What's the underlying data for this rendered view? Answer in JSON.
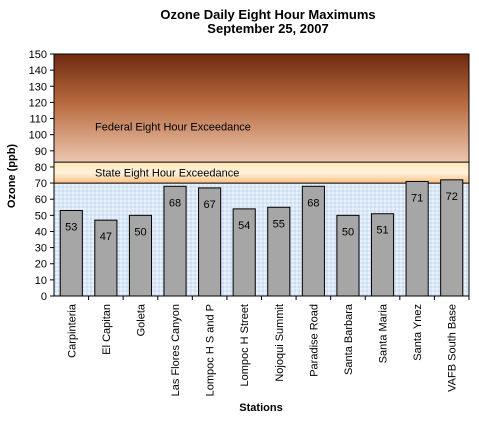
{
  "chart_data": {
    "type": "bar",
    "title": "Ozone Daily Eight Hour Maximums",
    "subtitle": "September 25, 2007",
    "xlabel": "Stations",
    "ylabel": "Ozone (ppb)",
    "ylim": [
      0,
      150
    ],
    "yticks": [
      0,
      10,
      20,
      30,
      40,
      50,
      60,
      70,
      80,
      90,
      100,
      110,
      120,
      130,
      140,
      150
    ],
    "categories": [
      "Carpinteria",
      "El Capitan",
      "Goleta",
      "Las Flores Canyon",
      "Lompoc H S and P",
      "Lompoc H Street",
      "Nojoqui Summit",
      "Paradise Road",
      "Santa Barbara",
      "Santa Maria",
      "Santa Ynez",
      "VAFB South Base"
    ],
    "values": [
      53,
      47,
      50,
      68,
      67,
      54,
      55,
      68,
      50,
      51,
      71,
      72
    ],
    "data_labels": [
      "53",
      "47",
      "50",
      "68",
      "67",
      "54",
      "55",
      "68",
      "50",
      "51",
      "71",
      "72"
    ],
    "bar_color": "#a6a6a6",
    "thresholds": [
      {
        "label": "State Eight Hour Exceedance",
        "from": 70,
        "to": 83
      },
      {
        "label": "Federal Eight Hour Exceedance",
        "from": 83,
        "to": 150
      }
    ],
    "grid": false,
    "legend": "none"
  }
}
